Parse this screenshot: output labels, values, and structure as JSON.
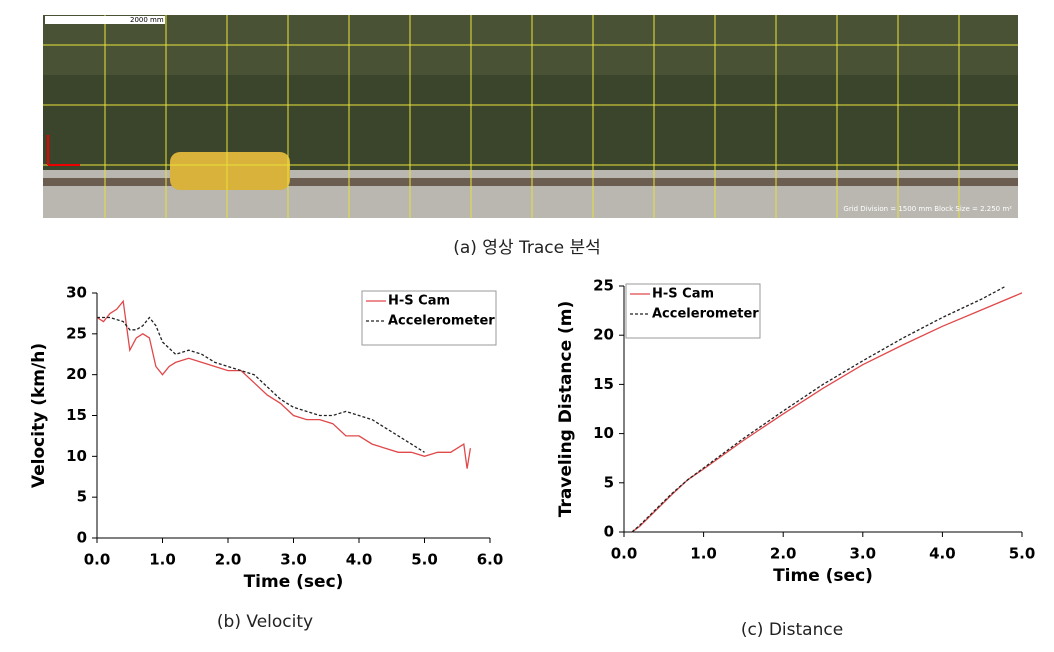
{
  "image": {
    "scale_label": "2000 mm",
    "info": "Grid Division = 1500 mm  Block Size = 2.250 m²",
    "caption": "(a) 영상 Trace 분석"
  },
  "chart_data": [
    {
      "type": "line",
      "caption": "(b) Velocity",
      "xlabel": "Time (sec)",
      "ylabel": "Velocity (km/h)",
      "xlim": [
        0,
        6
      ],
      "xticks": [
        {
          "value": 0,
          "label": "0.0"
        },
        {
          "value": 1,
          "label": "1.0"
        },
        {
          "value": 2,
          "label": "2.0"
        },
        {
          "value": 3,
          "label": "3.0"
        },
        {
          "value": 4,
          "label": "4.0"
        },
        {
          "value": 5,
          "label": "5.0"
        },
        {
          "value": 6,
          "label": "6.0"
        }
      ],
      "ylim": [
        0,
        30
      ],
      "yticks": [
        0,
        5,
        10,
        15,
        20,
        25,
        30
      ],
      "legend": "upper right",
      "series": [
        {
          "name": "H-S Cam",
          "color": "#e0484a",
          "style": "solid",
          "x": [
            0,
            0.1,
            0.2,
            0.3,
            0.4,
            0.45,
            0.5,
            0.6,
            0.7,
            0.8,
            0.9,
            1.0,
            1.1,
            1.2,
            1.4,
            1.6,
            1.8,
            2.0,
            2.2,
            2.4,
            2.6,
            2.8,
            3.0,
            3.2,
            3.4,
            3.6,
            3.8,
            4.0,
            4.2,
            4.4,
            4.6,
            4.8,
            5.0,
            5.2,
            5.4,
            5.6,
            5.65,
            5.7
          ],
          "values": [
            27,
            26.5,
            27.5,
            28,
            29,
            26,
            23,
            24.5,
            25,
            24.5,
            21,
            20,
            21,
            21.5,
            22,
            21.5,
            21,
            20.5,
            20.5,
            19,
            17.5,
            16.5,
            15,
            14.5,
            14.5,
            14,
            12.5,
            12.5,
            11.5,
            11,
            10.5,
            10.5,
            10,
            10.5,
            10.5,
            11.5,
            8.5,
            11
          ]
        },
        {
          "name": "Accelerometer",
          "color": "#222222",
          "style": "dashed",
          "x": [
            0,
            0.2,
            0.4,
            0.5,
            0.6,
            0.7,
            0.8,
            0.9,
            1.0,
            1.2,
            1.4,
            1.6,
            1.8,
            2.0,
            2.2,
            2.4,
            2.6,
            2.8,
            3.0,
            3.2,
            3.4,
            3.6,
            3.8,
            4.0,
            4.2,
            4.4,
            4.6,
            4.8,
            5.0
          ],
          "values": [
            27,
            27,
            26.5,
            25.5,
            25.5,
            26,
            27,
            26,
            24,
            22.5,
            23,
            22.5,
            21.5,
            21,
            20.5,
            20,
            18.5,
            17,
            16,
            15.5,
            15,
            15,
            15.5,
            15,
            14.5,
            13.5,
            12.5,
            11.5,
            10.5
          ]
        }
      ]
    },
    {
      "type": "line",
      "caption": "(c) Distance",
      "xlabel": "Time (sec)",
      "ylabel": "Traveling Distance (m)",
      "xlim": [
        0,
        5
      ],
      "xticks": [
        {
          "value": 0,
          "label": "0.0"
        },
        {
          "value": 1,
          "label": "1.0"
        },
        {
          "value": 2,
          "label": "2.0"
        },
        {
          "value": 3,
          "label": "3.0"
        },
        {
          "value": 4,
          "label": "4.0"
        },
        {
          "value": 5,
          "label": "5.0"
        }
      ],
      "ylim": [
        0,
        25
      ],
      "yticks": [
        0,
        5,
        10,
        15,
        20,
        25
      ],
      "legend": "upper left",
      "series": [
        {
          "name": "H-S Cam",
          "color": "#e0484a",
          "style": "solid",
          "x": [
            0.1,
            0.2,
            0.4,
            0.6,
            0.8,
            1.0,
            1.5,
            2.0,
            2.5,
            3.0,
            3.5,
            4.0,
            4.5,
            5.0
          ],
          "values": [
            0,
            0.6,
            2.2,
            3.8,
            5.3,
            6.4,
            9.3,
            12,
            14.6,
            17,
            19,
            20.9,
            22.6,
            24.3
          ]
        },
        {
          "name": "Accelerometer",
          "color": "#222222",
          "style": "dashed",
          "x": [
            0.1,
            0.2,
            0.4,
            0.6,
            0.8,
            1.0,
            1.5,
            2.0,
            2.5,
            3.0,
            3.5,
            4.0,
            4.5,
            4.8
          ],
          "values": [
            0,
            0.7,
            2.3,
            3.9,
            5.3,
            6.5,
            9.5,
            12.3,
            15,
            17.4,
            19.7,
            21.8,
            23.7,
            25
          ]
        }
      ]
    }
  ]
}
